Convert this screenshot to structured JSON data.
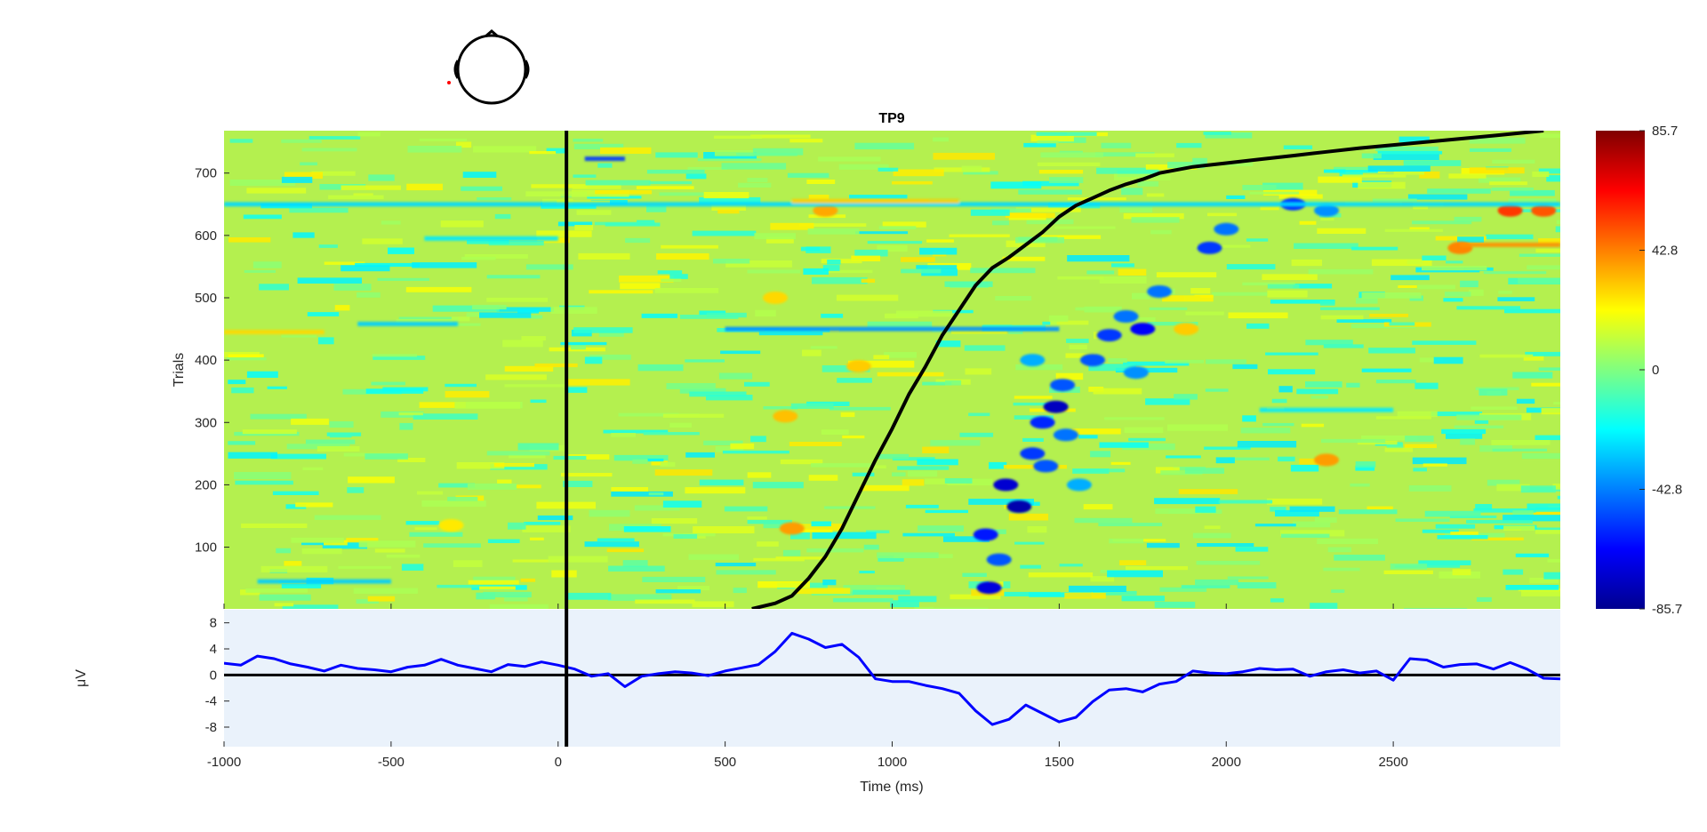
{
  "chart_data": [
    {
      "type": "heatmap",
      "title": "TP9",
      "ylabel": "Trials",
      "xlim": [
        -1000,
        3000
      ],
      "ylim": [
        1,
        768
      ],
      "yticks": [
        100,
        200,
        300,
        400,
        500,
        600,
        700
      ],
      "xticks": [
        -1000,
        -500,
        0,
        500,
        1000,
        1500,
        2000,
        2500
      ],
      "colormap": "jet",
      "clim": [
        -85.7,
        85.7
      ],
      "colorbar_ticks": [
        "85.7",
        "42.8",
        "0",
        "-42.8",
        "-85.7"
      ],
      "stimulus_marker_ms": 25,
      "sorting_curve": {
        "x": [
          580,
          650,
          700,
          750,
          800,
          850,
          900,
          950,
          1000,
          1050,
          1100,
          1150,
          1200,
          1250,
          1300,
          1350,
          1400,
          1450,
          1500,
          1550,
          1600,
          1650,
          1700,
          1750,
          1800,
          1900,
          2000,
          2100,
          2200,
          2300,
          2400,
          2500,
          2600,
          2700,
          2800,
          2950
        ],
        "y": [
          1,
          10,
          22,
          50,
          85,
          130,
          185,
          240,
          290,
          345,
          390,
          440,
          480,
          520,
          548,
          565,
          585,
          605,
          630,
          648,
          660,
          672,
          682,
          690,
          700,
          710,
          716,
          722,
          728,
          734,
          740,
          745,
          750,
          755,
          760,
          768
        ]
      },
      "blobs": [
        {
          "x": 1290,
          "y": 35,
          "v": -70
        },
        {
          "x": 1280,
          "y": 120,
          "v": -60
        },
        {
          "x": 1320,
          "y": 80,
          "v": -50
        },
        {
          "x": 1340,
          "y": 200,
          "v": -72
        },
        {
          "x": 1380,
          "y": 165,
          "v": -78
        },
        {
          "x": 1420,
          "y": 250,
          "v": -55
        },
        {
          "x": 1460,
          "y": 230,
          "v": -50
        },
        {
          "x": 1450,
          "y": 300,
          "v": -58
        },
        {
          "x": 1490,
          "y": 325,
          "v": -75
        },
        {
          "x": 1510,
          "y": 360,
          "v": -50
        },
        {
          "x": 1520,
          "y": 280,
          "v": -45
        },
        {
          "x": 1600,
          "y": 400,
          "v": -50
        },
        {
          "x": 1650,
          "y": 440,
          "v": -55
        },
        {
          "x": 1700,
          "y": 470,
          "v": -45
        },
        {
          "x": 1750,
          "y": 450,
          "v": -65
        },
        {
          "x": 1800,
          "y": 510,
          "v": -45
        },
        {
          "x": 1950,
          "y": 580,
          "v": -55
        },
        {
          "x": 2000,
          "y": 610,
          "v": -45
        },
        {
          "x": 2200,
          "y": 650,
          "v": -55
        },
        {
          "x": 2300,
          "y": 640,
          "v": -40
        },
        {
          "x": 1730,
          "y": 380,
          "v": -40
        },
        {
          "x": 1560,
          "y": 200,
          "v": -35
        },
        {
          "x": 1420,
          "y": 400,
          "v": -35
        },
        {
          "x": 700,
          "y": 130,
          "v": 38
        },
        {
          "x": 680,
          "y": 310,
          "v": 32
        },
        {
          "x": 900,
          "y": 390,
          "v": 30
        },
        {
          "x": 2850,
          "y": 640,
          "v": 55
        },
        {
          "x": 2700,
          "y": 580,
          "v": 42
        },
        {
          "x": 2300,
          "y": 240,
          "v": 38
        },
        {
          "x": 800,
          "y": 640,
          "v": 36
        },
        {
          "x": 1880,
          "y": 450,
          "v": 30
        },
        {
          "x": -320,
          "y": 135,
          "v": 25
        },
        {
          "x": 650,
          "y": 500,
          "v": 28
        },
        {
          "x": 2950,
          "y": 640,
          "v": 50
        }
      ],
      "streaks": [
        {
          "x0": 500,
          "x1": 1500,
          "y": 450,
          "v": -40
        },
        {
          "x0": 80,
          "x1": 200,
          "y": 723,
          "v": -55
        },
        {
          "x0": -1000,
          "x1": 3000,
          "y": 650,
          "v": -28
        },
        {
          "x0": -400,
          "x1": 0,
          "y": 595,
          "v": -25
        },
        {
          "x0": -1000,
          "x1": -700,
          "y": 445,
          "v": 28
        },
        {
          "x0": 2700,
          "x1": 3000,
          "y": 585,
          "v": 40
        },
        {
          "x0": -600,
          "x1": -300,
          "y": 458,
          "v": -30
        },
        {
          "x0": 700,
          "x1": 1200,
          "y": 655,
          "v": 30
        },
        {
          "x0": 2100,
          "x1": 2500,
          "y": 320,
          "v": -25
        },
        {
          "x0": -900,
          "x1": -500,
          "y": 45,
          "v": -30
        }
      ]
    },
    {
      "type": "line",
      "xlabel": "Time (ms)",
      "ylabel": "μV",
      "xlim": [
        -1000,
        3000
      ],
      "ylim": [
        -11,
        10
      ],
      "yticks": [
        8,
        4,
        0,
        -4,
        -8
      ],
      "xticks": [
        -1000,
        -500,
        0,
        500,
        1000,
        1500,
        2000,
        2500
      ],
      "zero_line": 0,
      "stimulus_marker_ms": 25,
      "series": [
        {
          "color": "#0000ff",
          "x": [
            -1000,
            -950,
            -900,
            -850,
            -800,
            -750,
            -700,
            -650,
            -600,
            -550,
            -500,
            -450,
            -400,
            -350,
            -300,
            -250,
            -200,
            -150,
            -100,
            -50,
            0,
            50,
            100,
            150,
            200,
            250,
            300,
            350,
            400,
            450,
            500,
            550,
            600,
            650,
            700,
            750,
            800,
            850,
            900,
            950,
            1000,
            1050,
            1100,
            1150,
            1200,
            1250,
            1300,
            1350,
            1400,
            1450,
            1500,
            1550,
            1600,
            1650,
            1700,
            1750,
            1800,
            1850,
            1900,
            1950,
            2000,
            2050,
            2100,
            2150,
            2200,
            2250,
            2300,
            2350,
            2400,
            2450,
            2500,
            2550,
            2600,
            2650,
            2700,
            2750,
            2800,
            2850,
            2900,
            2950,
            3000
          ],
          "y": [
            1.8,
            1.5,
            2.9,
            2.5,
            1.7,
            1.2,
            0.6,
            1.5,
            1.0,
            0.8,
            0.5,
            1.2,
            1.5,
            2.4,
            1.5,
            1.0,
            0.5,
            1.6,
            1.3,
            2.0,
            1.5,
            0.9,
            -0.2,
            0.2,
            -1.8,
            -0.2,
            0.2,
            0.5,
            0.3,
            -0.1,
            0.6,
            1.1,
            1.6,
            3.6,
            6.4,
            5.5,
            4.2,
            4.7,
            2.7,
            -0.6,
            -1.0,
            -1.0,
            -1.6,
            -2.1,
            -2.8,
            -5.5,
            -7.6,
            -6.8,
            -4.6,
            -5.9,
            -7.2,
            -6.5,
            -4.1,
            -2.3,
            -2.1,
            -2.6,
            -1.4,
            -1.0,
            0.6,
            0.3,
            0.2,
            0.5,
            1.0,
            0.8,
            0.9,
            -0.2,
            0.5,
            0.8,
            0.3,
            0.6,
            -0.8,
            2.5,
            2.3,
            1.2,
            1.6,
            1.7,
            0.9,
            1.9,
            0.9,
            -0.5,
            -0.6
          ]
        }
      ]
    }
  ]
}
